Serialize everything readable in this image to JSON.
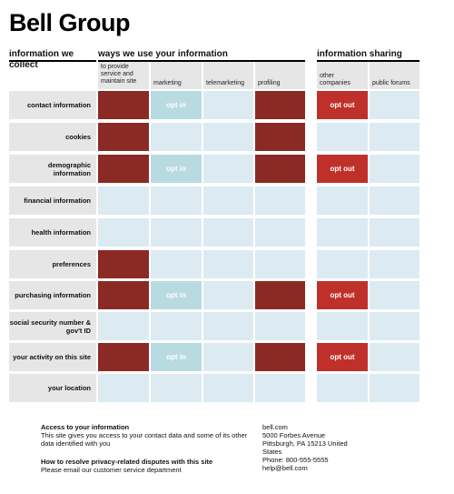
{
  "title": "Bell Group",
  "sections": {
    "collect": "information we collect",
    "ways": "ways we use your information",
    "sharing": "information sharing"
  },
  "columns": [
    "to provide service and maintain site",
    "marketing",
    "telemarketing",
    "profiling",
    "other companies",
    "public forums"
  ],
  "rows": [
    {
      "label": "contact information",
      "cells": [
        "required",
        "opt in",
        "",
        "required",
        "opt out",
        ""
      ]
    },
    {
      "label": "cookies",
      "cells": [
        "required",
        "",
        "",
        "required",
        "",
        ""
      ]
    },
    {
      "label": "demographic information",
      "cells": [
        "required",
        "opt in",
        "",
        "required",
        "opt out",
        ""
      ]
    },
    {
      "label": "financial information",
      "cells": [
        "",
        "",
        "",
        "",
        "",
        ""
      ]
    },
    {
      "label": "health information",
      "cells": [
        "",
        "",
        "",
        "",
        "",
        ""
      ]
    },
    {
      "label": "preferences",
      "cells": [
        "required",
        "",
        "",
        "",
        "",
        ""
      ]
    },
    {
      "label": "purchasing information",
      "cells": [
        "required",
        "opt in",
        "",
        "required",
        "opt out",
        ""
      ]
    },
    {
      "label": "social security number & gov't ID",
      "cells": [
        "",
        "",
        "",
        "",
        "",
        ""
      ]
    },
    {
      "label": "your activity on this site",
      "cells": [
        "required",
        "opt in",
        "",
        "required",
        "opt out",
        ""
      ]
    },
    {
      "label": "your location",
      "cells": [
        "",
        "",
        "",
        "",
        "",
        ""
      ]
    }
  ],
  "footer": {
    "access_title": "Access to your information",
    "access_text": "This site gives you access to your contact data and some of its other data identified with you",
    "disputes_title": "How to resolve privacy-related disputes with this site",
    "disputes_text": "Please email our customer service department",
    "contact": {
      "site": "bell.com",
      "street": "5000 Forbes Avenue",
      "city": "Pittsburgh, PA 15213 United States",
      "phone": "Phone: 800-555-5555",
      "email": "help@bell.com"
    }
  },
  "colors": {
    "required": "#8b2a24",
    "opt_in": "#b7dbe0",
    "opt_out": "#c0302a",
    "empty": "#dcebf1",
    "label_bg": "#e6e6e6"
  }
}
